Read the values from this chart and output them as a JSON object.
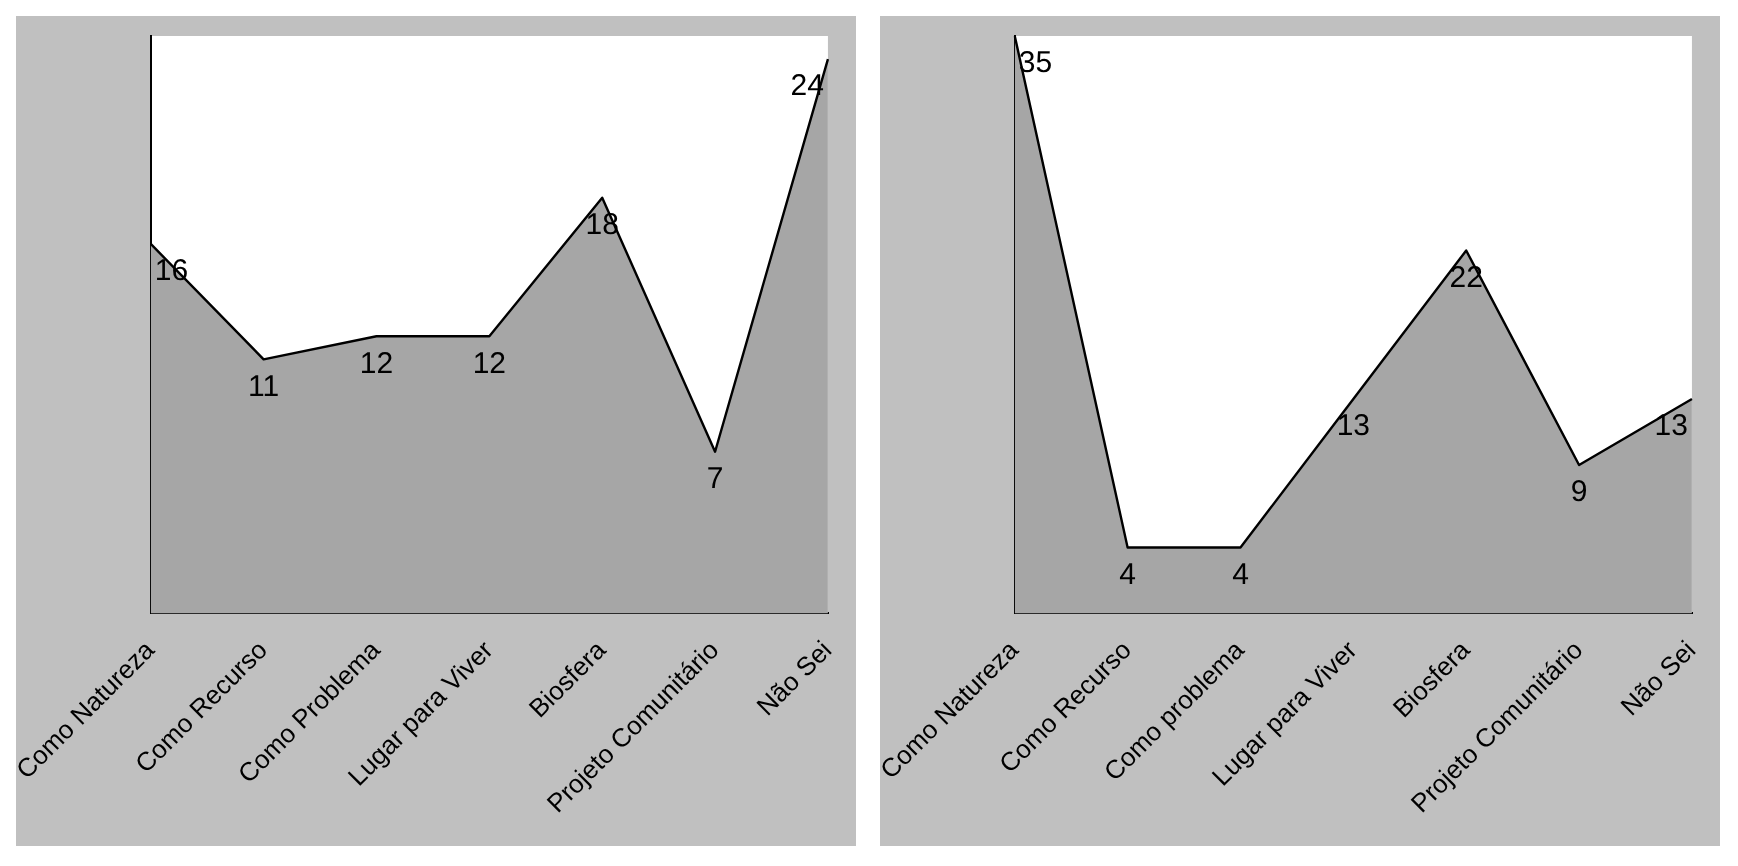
{
  "chart_data": [
    {
      "type": "area",
      "categories": [
        "Como Natureza",
        "Como Recurso",
        "Como Problema",
        "Lugar para Viver",
        "Biosfera",
        "Projeto Comunitário",
        "Não Sei"
      ],
      "series": [
        {
          "color": "#a6a6a6",
          "values": [
            16,
            11,
            12,
            12,
            18,
            7,
            24
          ]
        }
      ],
      "data_labels": true,
      "grid": false,
      "legend": false,
      "tick_labels": "x"
    },
    {
      "type": "area",
      "categories": [
        "Como Natureza",
        "Como Recurso",
        "Como problema",
        "Lugar para Viver",
        "Biosfera",
        "Projeto Comunitário",
        "Não Sei"
      ],
      "series": [
        {
          "color": "#a6a6a6",
          "values": [
            35,
            4,
            4,
            13,
            22,
            9,
            13
          ]
        }
      ],
      "data_labels": true,
      "grid": false,
      "legend": false,
      "tick_labels": "x"
    }
  ]
}
